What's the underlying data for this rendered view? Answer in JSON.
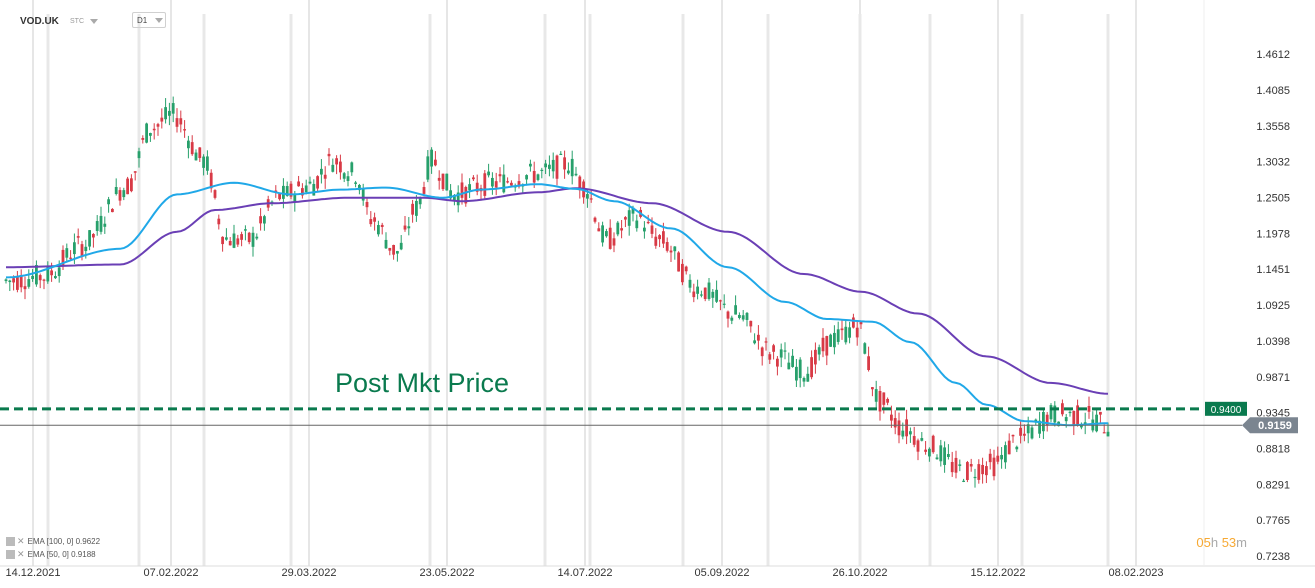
{
  "header": {
    "symbol": "VOD.UK",
    "instrument_type": "STC",
    "timeframe": "D1"
  },
  "timer": {
    "hours": "05",
    "h_unit": "h",
    "minutes": "53",
    "m_unit": "m"
  },
  "indicators": [
    {
      "label": "EMA [100, 0] 0.9622"
    },
    {
      "label": "EMA [50, 0] 0.9188"
    }
  ],
  "colors": {
    "bull": "#27a06b",
    "bear": "#d83a46",
    "ema100": "#6a3fb5",
    "ema50": "#20a8e8",
    "post_line": "#0a7a4e",
    "price_tag": "#7b8590"
  },
  "chart_data": {
    "type": "candlestick",
    "annotation": "Post Mkt Price",
    "post_mkt_price_label": "0.9400",
    "post_mkt_price": 0.94,
    "last_price_label": "0.9159",
    "last_price": 0.9159,
    "y_ticks": [
      "1.4612",
      "1.4085",
      "1.3558",
      "1.3032",
      "1.2505",
      "1.1978",
      "1.1451",
      "1.0925",
      "1.0398",
      "0.9871",
      "0.9345",
      "0.8818",
      "0.8291",
      "0.7765",
      "0.7238"
    ],
    "x_ticks": [
      "14.12.2021",
      "07.02.2022",
      "29.03.2022",
      "23.05.2022",
      "14.07.2022",
      "05.09.2022",
      "26.10.2022",
      "15.12.2022",
      "08.02.2023"
    ],
    "ylim": [
      0.7238,
      1.4612
    ],
    "ema_anchors": {
      "ema50": [
        [
          0,
          1.133
        ],
        [
          30,
          1.175
        ],
        [
          45,
          1.255
        ],
        [
          60,
          1.272
        ],
        [
          75,
          1.255
        ],
        [
          88,
          1.262
        ],
        [
          100,
          1.265
        ],
        [
          115,
          1.25
        ],
        [
          125,
          1.262
        ],
        [
          140,
          1.27
        ],
        [
          150,
          1.263
        ],
        [
          160,
          1.245
        ],
        [
          175,
          1.205
        ],
        [
          190,
          1.148
        ],
        [
          205,
          1.097
        ],
        [
          216,
          1.072
        ],
        [
          228,
          1.068
        ],
        [
          238,
          1.038
        ],
        [
          250,
          0.978
        ],
        [
          258,
          0.946
        ],
        [
          268,
          0.922
        ],
        [
          280,
          0.916
        ],
        [
          290,
          0.9188
        ]
      ],
      "ema100": [
        [
          0,
          1.148
        ],
        [
          30,
          1.152
        ],
        [
          45,
          1.2
        ],
        [
          55,
          1.232
        ],
        [
          70,
          1.242
        ],
        [
          90,
          1.25
        ],
        [
          110,
          1.25
        ],
        [
          120,
          1.245
        ],
        [
          140,
          1.258
        ],
        [
          150,
          1.264
        ],
        [
          170,
          1.242
        ],
        [
          190,
          1.2
        ],
        [
          210,
          1.138
        ],
        [
          225,
          1.112
        ],
        [
          240,
          1.08
        ],
        [
          258,
          1.017
        ],
        [
          275,
          0.978
        ],
        [
          290,
          0.9622
        ]
      ]
    },
    "price_anchors": [
      [
        0,
        1.128
      ],
      [
        10,
        1.135
      ],
      [
        20,
        1.18
      ],
      [
        32,
        1.268
      ],
      [
        38,
        1.352
      ],
      [
        44,
        1.372
      ],
      [
        52,
        1.305
      ],
      [
        58,
        1.19
      ],
      [
        64,
        1.188
      ],
      [
        72,
        1.252
      ],
      [
        80,
        1.268
      ],
      [
        86,
        1.305
      ],
      [
        92,
        1.285
      ],
      [
        96,
        1.22
      ],
      [
        103,
        1.17
      ],
      [
        108,
        1.235
      ],
      [
        112,
        1.305
      ],
      [
        118,
        1.255
      ],
      [
        128,
        1.272
      ],
      [
        140,
        1.285
      ],
      [
        148,
        1.3
      ],
      [
        152,
        1.268
      ],
      [
        158,
        1.188
      ],
      [
        166,
        1.222
      ],
      [
        172,
        1.188
      ],
      [
        182,
        1.118
      ],
      [
        192,
        1.078
      ],
      [
        202,
        1.02
      ],
      [
        210,
        0.995
      ],
      [
        218,
        1.042
      ],
      [
        224,
        1.062
      ],
      [
        230,
        0.95
      ],
      [
        236,
        0.912
      ],
      [
        242,
        0.888
      ],
      [
        252,
        0.848
      ],
      [
        260,
        0.858
      ],
      [
        266,
        0.894
      ],
      [
        276,
        0.932
      ],
      [
        284,
        0.928
      ],
      [
        290,
        0.9159
      ]
    ]
  }
}
